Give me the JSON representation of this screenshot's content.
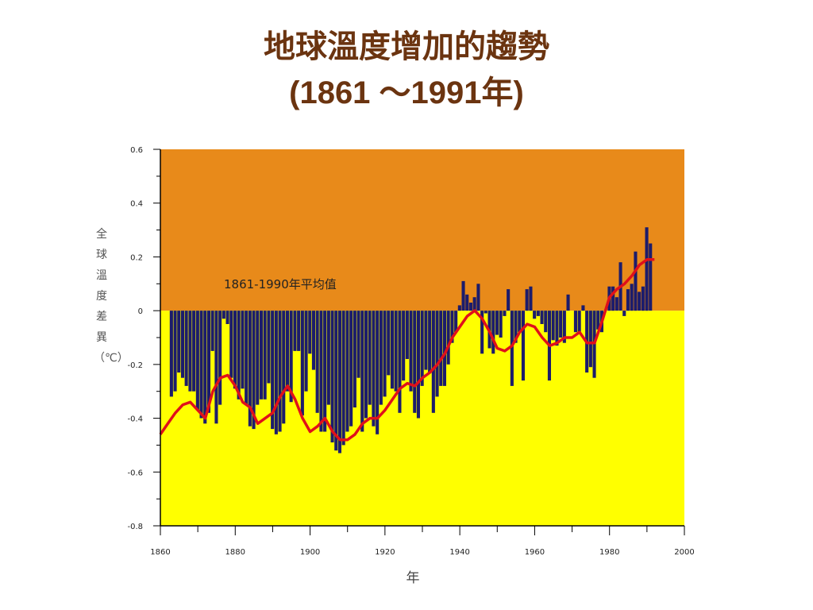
{
  "slide": {
    "title_line1": "地球溫度增加的趨勢",
    "title_line2": "(1861 ～1991年)"
  },
  "colors": {
    "above_fill": "#e88a1a",
    "below_fill": "#ffff00",
    "bars": "#1c1c6b",
    "trend": "#e0101a",
    "title": "#6b3410"
  },
  "chart_data": {
    "type": "bar",
    "title": "",
    "ylabel": "全球溫度差異（℃）",
    "xlabel": "年",
    "annotation": "1861-1990年平均值",
    "xlim": [
      1860,
      2000
    ],
    "ylim": [
      -0.8,
      0.6
    ],
    "y_ticks": [
      "0.6",
      "0.4",
      "0.2",
      "0",
      "-0.2",
      "-0.4",
      "-0.6",
      "-0.8"
    ],
    "y_tick_values": [
      0.6,
      0.4,
      0.2,
      0,
      -0.2,
      -0.4,
      -0.6,
      -0.8
    ],
    "x_ticks": [
      "1860",
      "1880",
      "1900",
      "1920",
      "1940",
      "1960",
      "1980",
      "2000"
    ],
    "x_tick_values": [
      1860,
      1880,
      1900,
      1920,
      1940,
      1960,
      1980,
      2000
    ],
    "grid": false,
    "series": [
      {
        "kind": "annual_anomaly_bars",
        "years": [
          1863,
          1864,
          1865,
          1866,
          1867,
          1868,
          1869,
          1870,
          1871,
          1872,
          1873,
          1874,
          1875,
          1876,
          1877,
          1878,
          1879,
          1880,
          1881,
          1882,
          1883,
          1884,
          1885,
          1886,
          1887,
          1888,
          1889,
          1890,
          1891,
          1892,
          1893,
          1894,
          1895,
          1896,
          1897,
          1898,
          1899,
          1900,
          1901,
          1902,
          1903,
          1904,
          1905,
          1906,
          1907,
          1908,
          1909,
          1910,
          1911,
          1912,
          1913,
          1914,
          1915,
          1916,
          1917,
          1918,
          1919,
          1920,
          1921,
          1922,
          1923,
          1924,
          1925,
          1926,
          1927,
          1928,
          1929,
          1930,
          1931,
          1932,
          1933,
          1934,
          1935,
          1936,
          1937,
          1938,
          1939,
          1940,
          1941,
          1942,
          1943,
          1944,
          1945,
          1946,
          1947,
          1948,
          1949,
          1950,
          1951,
          1952,
          1953,
          1954,
          1955,
          1956,
          1957,
          1958,
          1959,
          1960,
          1961,
          1962,
          1963,
          1964,
          1965,
          1966,
          1967,
          1968,
          1969,
          1970,
          1971,
          1972,
          1973,
          1974,
          1975,
          1976,
          1977,
          1978,
          1979,
          1980,
          1981,
          1982,
          1983,
          1984,
          1985,
          1986,
          1987,
          1988,
          1989,
          1990,
          1991
        ],
        "values": [
          -0.32,
          -0.3,
          -0.23,
          -0.25,
          -0.28,
          -0.3,
          -0.3,
          -0.37,
          -0.4,
          -0.42,
          -0.38,
          -0.15,
          -0.42,
          -0.35,
          -0.03,
          -0.05,
          -0.25,
          -0.29,
          -0.33,
          -0.29,
          -0.35,
          -0.43,
          -0.44,
          -0.35,
          -0.33,
          -0.33,
          -0.27,
          -0.44,
          -0.46,
          -0.45,
          -0.42,
          -0.3,
          -0.34,
          -0.15,
          -0.15,
          -0.39,
          -0.3,
          -0.16,
          -0.22,
          -0.38,
          -0.45,
          -0.45,
          -0.35,
          -0.49,
          -0.52,
          -0.53,
          -0.5,
          -0.45,
          -0.43,
          -0.36,
          -0.25,
          -0.45,
          -0.4,
          -0.35,
          -0.43,
          -0.46,
          -0.35,
          -0.32,
          -0.24,
          -0.29,
          -0.3,
          -0.38,
          -0.26,
          -0.18,
          -0.3,
          -0.38,
          -0.4,
          -0.28,
          -0.22,
          -0.23,
          -0.38,
          -0.32,
          -0.28,
          -0.28,
          -0.2,
          -0.12,
          -0.08,
          0.02,
          0.11,
          0.06,
          0.03,
          0.05,
          0.1,
          -0.16,
          -0.01,
          -0.14,
          -0.16,
          -0.09,
          -0.1,
          -0.02,
          0.08,
          -0.28,
          -0.12,
          -0.08,
          -0.26,
          0.08,
          0.09,
          -0.03,
          -0.02,
          -0.05,
          -0.08,
          -0.26,
          -0.11,
          -0.13,
          -0.1,
          -0.12,
          0.06,
          0.0,
          -0.08,
          -0.08,
          0.02,
          -0.23,
          -0.21,
          -0.25,
          -0.07,
          -0.08,
          0.0,
          0.09,
          0.09,
          0.05,
          0.18,
          -0.02,
          0.08,
          0.1,
          0.22,
          0.07,
          0.09,
          0.31,
          0.25
        ]
      },
      {
        "kind": "smoothed_trend_line",
        "points": [
          [
            1860,
            -0.46
          ],
          [
            1862,
            -0.42
          ],
          [
            1864,
            -0.38
          ],
          [
            1866,
            -0.35
          ],
          [
            1868,
            -0.34
          ],
          [
            1870,
            -0.37
          ],
          [
            1872,
            -0.4
          ],
          [
            1874,
            -0.3
          ],
          [
            1876,
            -0.25
          ],
          [
            1878,
            -0.24
          ],
          [
            1880,
            -0.28
          ],
          [
            1882,
            -0.34
          ],
          [
            1884,
            -0.36
          ],
          [
            1886,
            -0.42
          ],
          [
            1888,
            -0.4
          ],
          [
            1890,
            -0.38
          ],
          [
            1892,
            -0.32
          ],
          [
            1894,
            -0.28
          ],
          [
            1896,
            -0.33
          ],
          [
            1898,
            -0.4
          ],
          [
            1900,
            -0.45
          ],
          [
            1902,
            -0.43
          ],
          [
            1904,
            -0.4
          ],
          [
            1906,
            -0.45
          ],
          [
            1908,
            -0.48
          ],
          [
            1910,
            -0.48
          ],
          [
            1912,
            -0.46
          ],
          [
            1914,
            -0.42
          ],
          [
            1916,
            -0.4
          ],
          [
            1918,
            -0.4
          ],
          [
            1920,
            -0.37
          ],
          [
            1922,
            -0.33
          ],
          [
            1924,
            -0.29
          ],
          [
            1926,
            -0.27
          ],
          [
            1928,
            -0.28
          ],
          [
            1930,
            -0.25
          ],
          [
            1932,
            -0.23
          ],
          [
            1934,
            -0.2
          ],
          [
            1936,
            -0.16
          ],
          [
            1938,
            -0.1
          ],
          [
            1940,
            -0.06
          ],
          [
            1942,
            -0.02
          ],
          [
            1944,
            0.0
          ],
          [
            1946,
            -0.03
          ],
          [
            1948,
            -0.08
          ],
          [
            1950,
            -0.14
          ],
          [
            1952,
            -0.15
          ],
          [
            1954,
            -0.13
          ],
          [
            1956,
            -0.08
          ],
          [
            1958,
            -0.05
          ],
          [
            1960,
            -0.06
          ],
          [
            1962,
            -0.1
          ],
          [
            1964,
            -0.13
          ],
          [
            1966,
            -0.12
          ],
          [
            1968,
            -0.1
          ],
          [
            1970,
            -0.1
          ],
          [
            1972,
            -0.08
          ],
          [
            1974,
            -0.12
          ],
          [
            1976,
            -0.12
          ],
          [
            1978,
            -0.04
          ],
          [
            1980,
            0.05
          ],
          [
            1982,
            0.08
          ],
          [
            1984,
            0.1
          ],
          [
            1986,
            0.13
          ],
          [
            1988,
            0.17
          ],
          [
            1990,
            0.19
          ],
          [
            1992,
            0.19
          ]
        ]
      }
    ]
  }
}
